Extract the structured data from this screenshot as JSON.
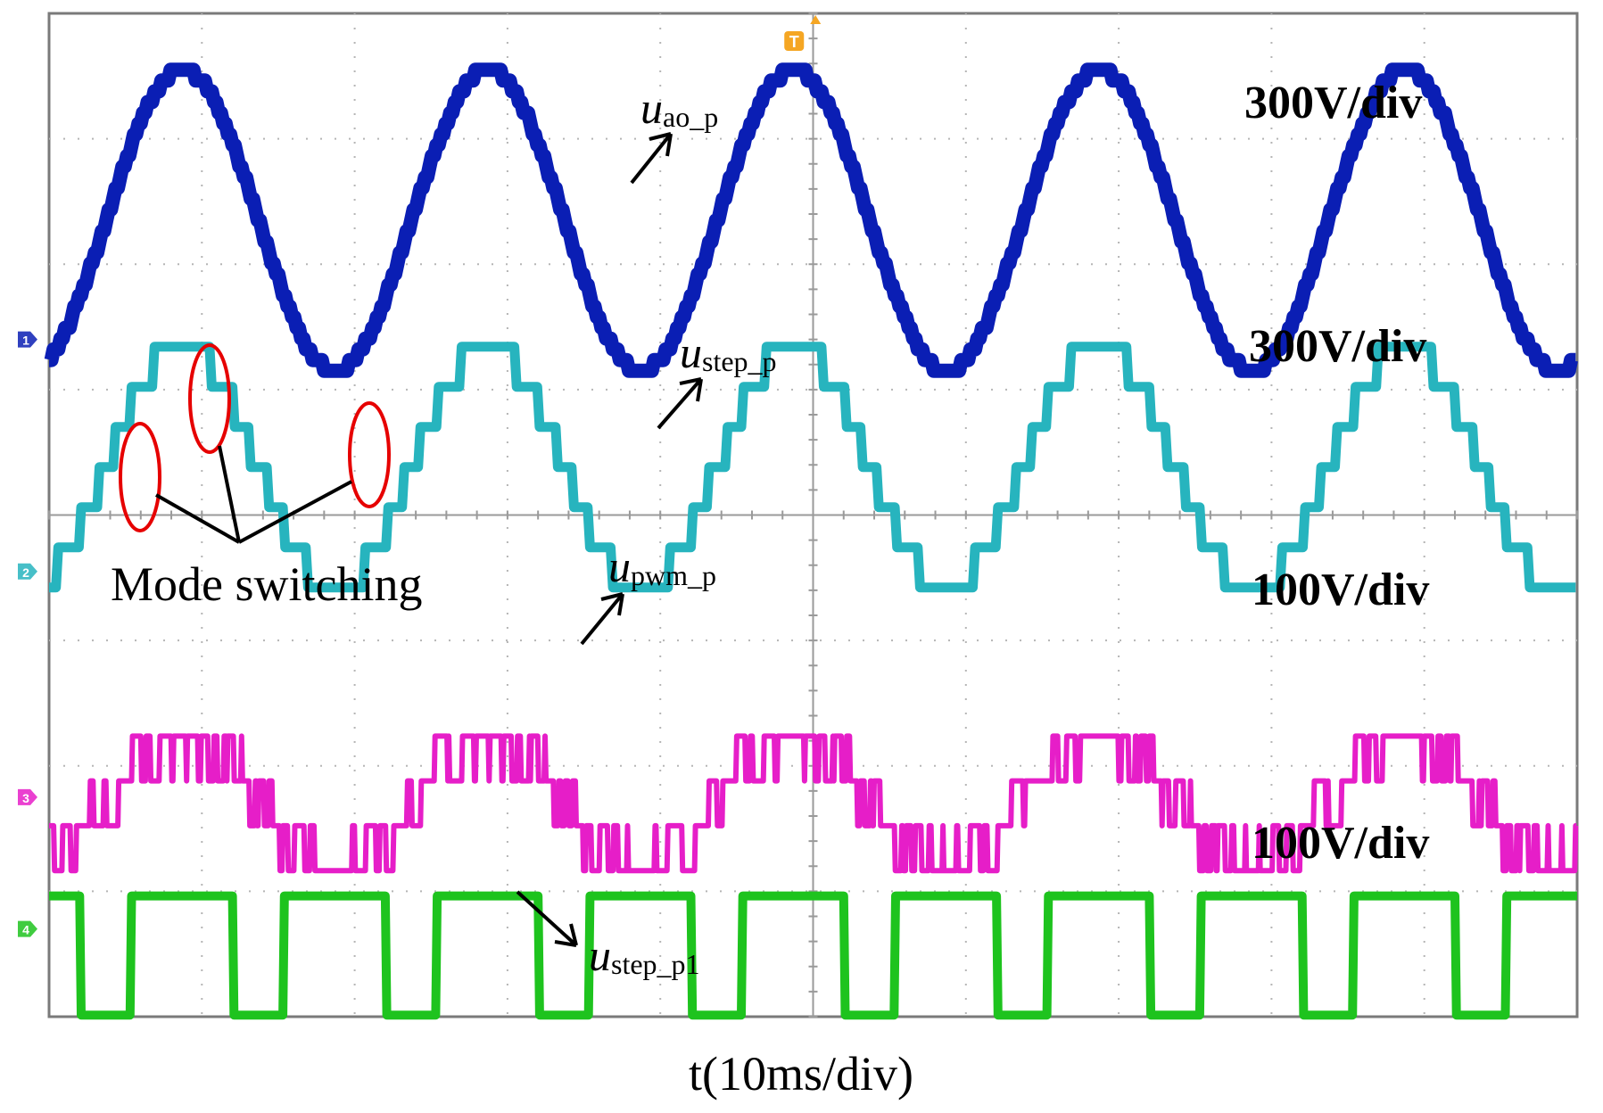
{
  "chart_data": {
    "type": "line",
    "title": "",
    "xlabel": "t(10ms/div)",
    "x_divisions": 10,
    "y_divisions": 8,
    "grid": true,
    "trigger_marker": "T",
    "series": [
      {
        "name": "u_ao_p",
        "label_main": "u",
        "label_sub": "ao_p",
        "scale_label": "300V/div",
        "color": "#0a1eb4",
        "ref_marker": "1",
        "shape": "sine",
        "frequency_hz": 50,
        "amplitude_div": 1.2,
        "offset_div": 0.95
      },
      {
        "name": "u_step_p",
        "label_main": "u",
        "label_sub": "step_p",
        "scale_label": "300V/div",
        "color": "#27b4be",
        "ref_marker": "2",
        "shape": "staircase",
        "frequency_hz": 50,
        "levels": [
          0,
          1,
          2,
          3,
          4,
          5,
          6
        ],
        "level_step_div": 0.32
      },
      {
        "name": "u_pwm_p",
        "label_main": "u",
        "label_sub": "pwm_p",
        "scale_label": "100V/div",
        "color": "#e61ec8",
        "ref_marker": "3",
        "shape": "pwm",
        "frequency_hz": 50,
        "amplitude_div": 0.65
      },
      {
        "name": "u_step_p1",
        "label_main": "u",
        "label_sub": "step_p1",
        "scale_label": "100V/div",
        "color": "#1ec31e",
        "ref_marker": "4",
        "shape": "square",
        "frequency_hz": 50,
        "high_div": 0.95
      }
    ],
    "annotations": [
      {
        "text": "Mode switching",
        "targets": 3
      }
    ]
  }
}
